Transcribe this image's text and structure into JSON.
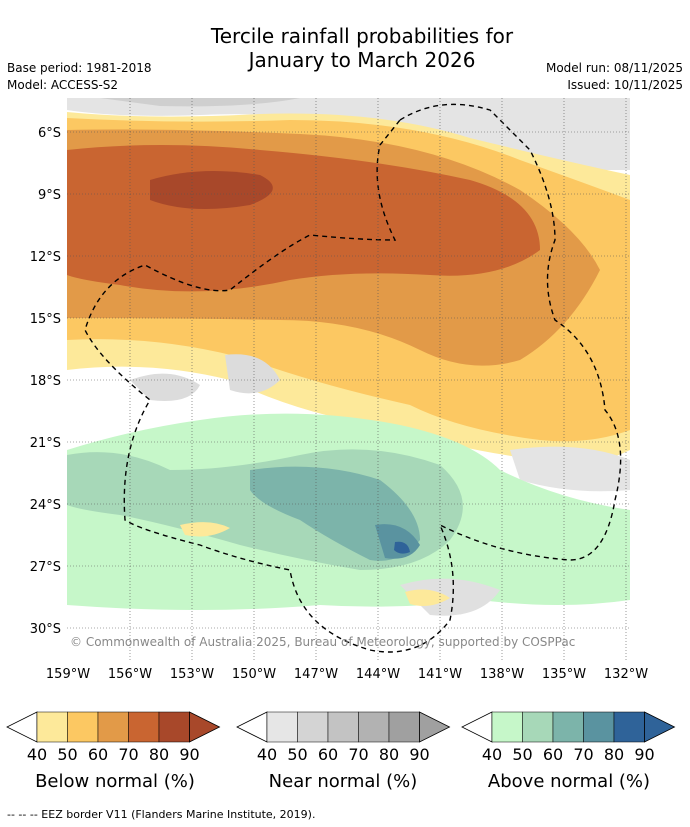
{
  "header": {
    "title_line1": "Tercile rainfall probabilities for",
    "title_line2": "January to March 2026",
    "base_period": "Base period: 1981-2018",
    "model": "Model: ACCESS-S2",
    "model_run": "Model run: 08/11/2025",
    "issued": "Issued: 10/11/2025"
  },
  "map": {
    "lat_labels": [
      "6°S",
      "9°S",
      "12°S",
      "15°S",
      "18°S",
      "21°S",
      "24°S",
      "27°S",
      "30°S"
    ],
    "lon_labels": [
      "159°W",
      "156°W",
      "153°W",
      "150°W",
      "147°W",
      "144°W",
      "141°W",
      "138°W",
      "135°W",
      "132°W"
    ],
    "copyright": "© Commonwealth of Australia 2025, Bureau of Meteorology, supported by COSPPac"
  },
  "colorbars": [
    {
      "label": "Below normal (%)",
      "ticks": [
        "40",
        "50",
        "60",
        "70",
        "80",
        "90"
      ],
      "colors": [
        "#fde99a",
        "#fcc862",
        "#e29a48",
        "#c96531",
        "#a8482a"
      ],
      "low_color": "#ffffff"
    },
    {
      "label": "Near normal (%)",
      "ticks": [
        "40",
        "50",
        "60",
        "70",
        "80",
        "90"
      ],
      "colors": [
        "#e6e6e6",
        "#d4d4d4",
        "#c3c3c3",
        "#b2b2b2",
        "#a0a0a0"
      ],
      "low_color": "#ffffff"
    },
    {
      "label": "Above normal (%)",
      "ticks": [
        "40",
        "50",
        "60",
        "70",
        "80",
        "90"
      ],
      "colors": [
        "#c6f7c9",
        "#a7d8b8",
        "#7cb4aa",
        "#5a93a0",
        "#2f6399"
      ],
      "low_color": "#ffffff"
    }
  ],
  "footnote": "--  --  -- EEZ border V11 (Flanders Marine Institute, 2019)."
}
